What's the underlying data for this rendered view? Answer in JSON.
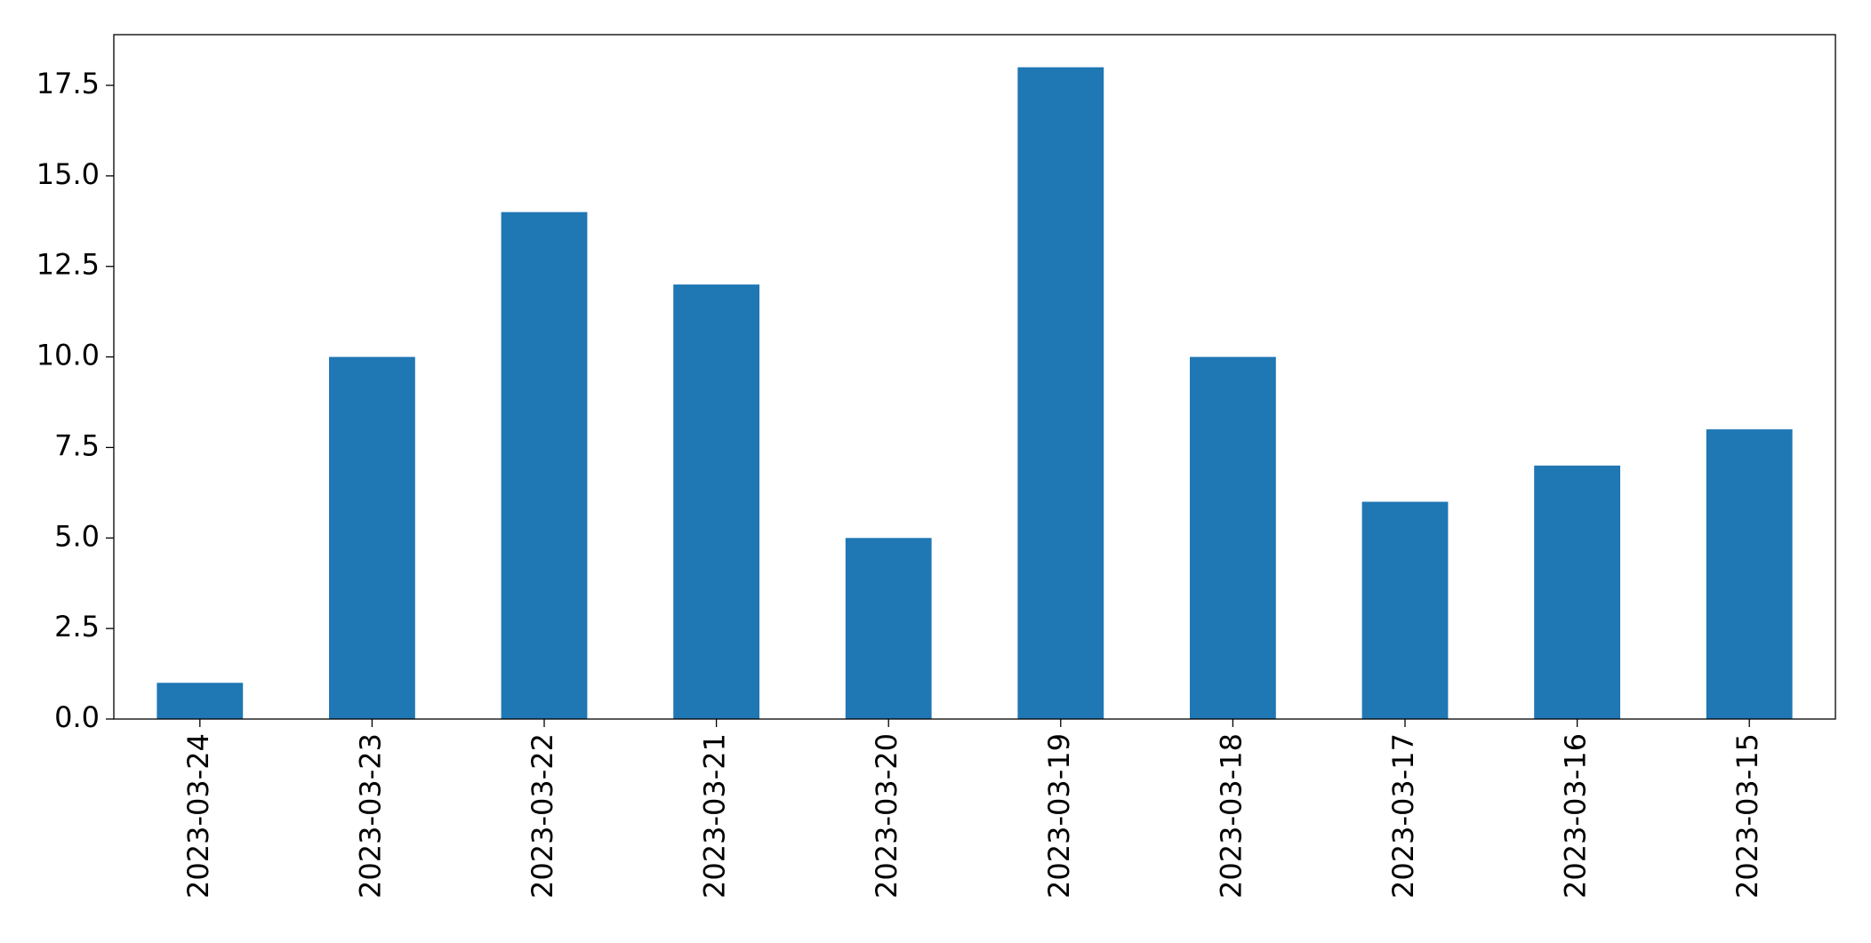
{
  "chart_data": {
    "type": "bar",
    "categories": [
      "2023-03-24",
      "2023-03-23",
      "2023-03-22",
      "2023-03-21",
      "2023-03-20",
      "2023-03-19",
      "2023-03-18",
      "2023-03-17",
      "2023-03-16",
      "2023-03-15"
    ],
    "values": [
      1,
      10,
      14,
      12,
      5,
      18,
      10,
      6,
      7,
      8
    ],
    "color": "#1f77b4",
    "ylim": [
      0,
      18.9
    ],
    "yticks": [
      {
        "value": 0,
        "label": "0.0"
      },
      2.5,
      {
        "value": 5,
        "label": "5.0"
      },
      7.5,
      {
        "value": 10,
        "label": "10.0"
      },
      12.5,
      {
        "value": 15,
        "label": "15.0"
      },
      17.5
    ],
    "grid": false
  }
}
